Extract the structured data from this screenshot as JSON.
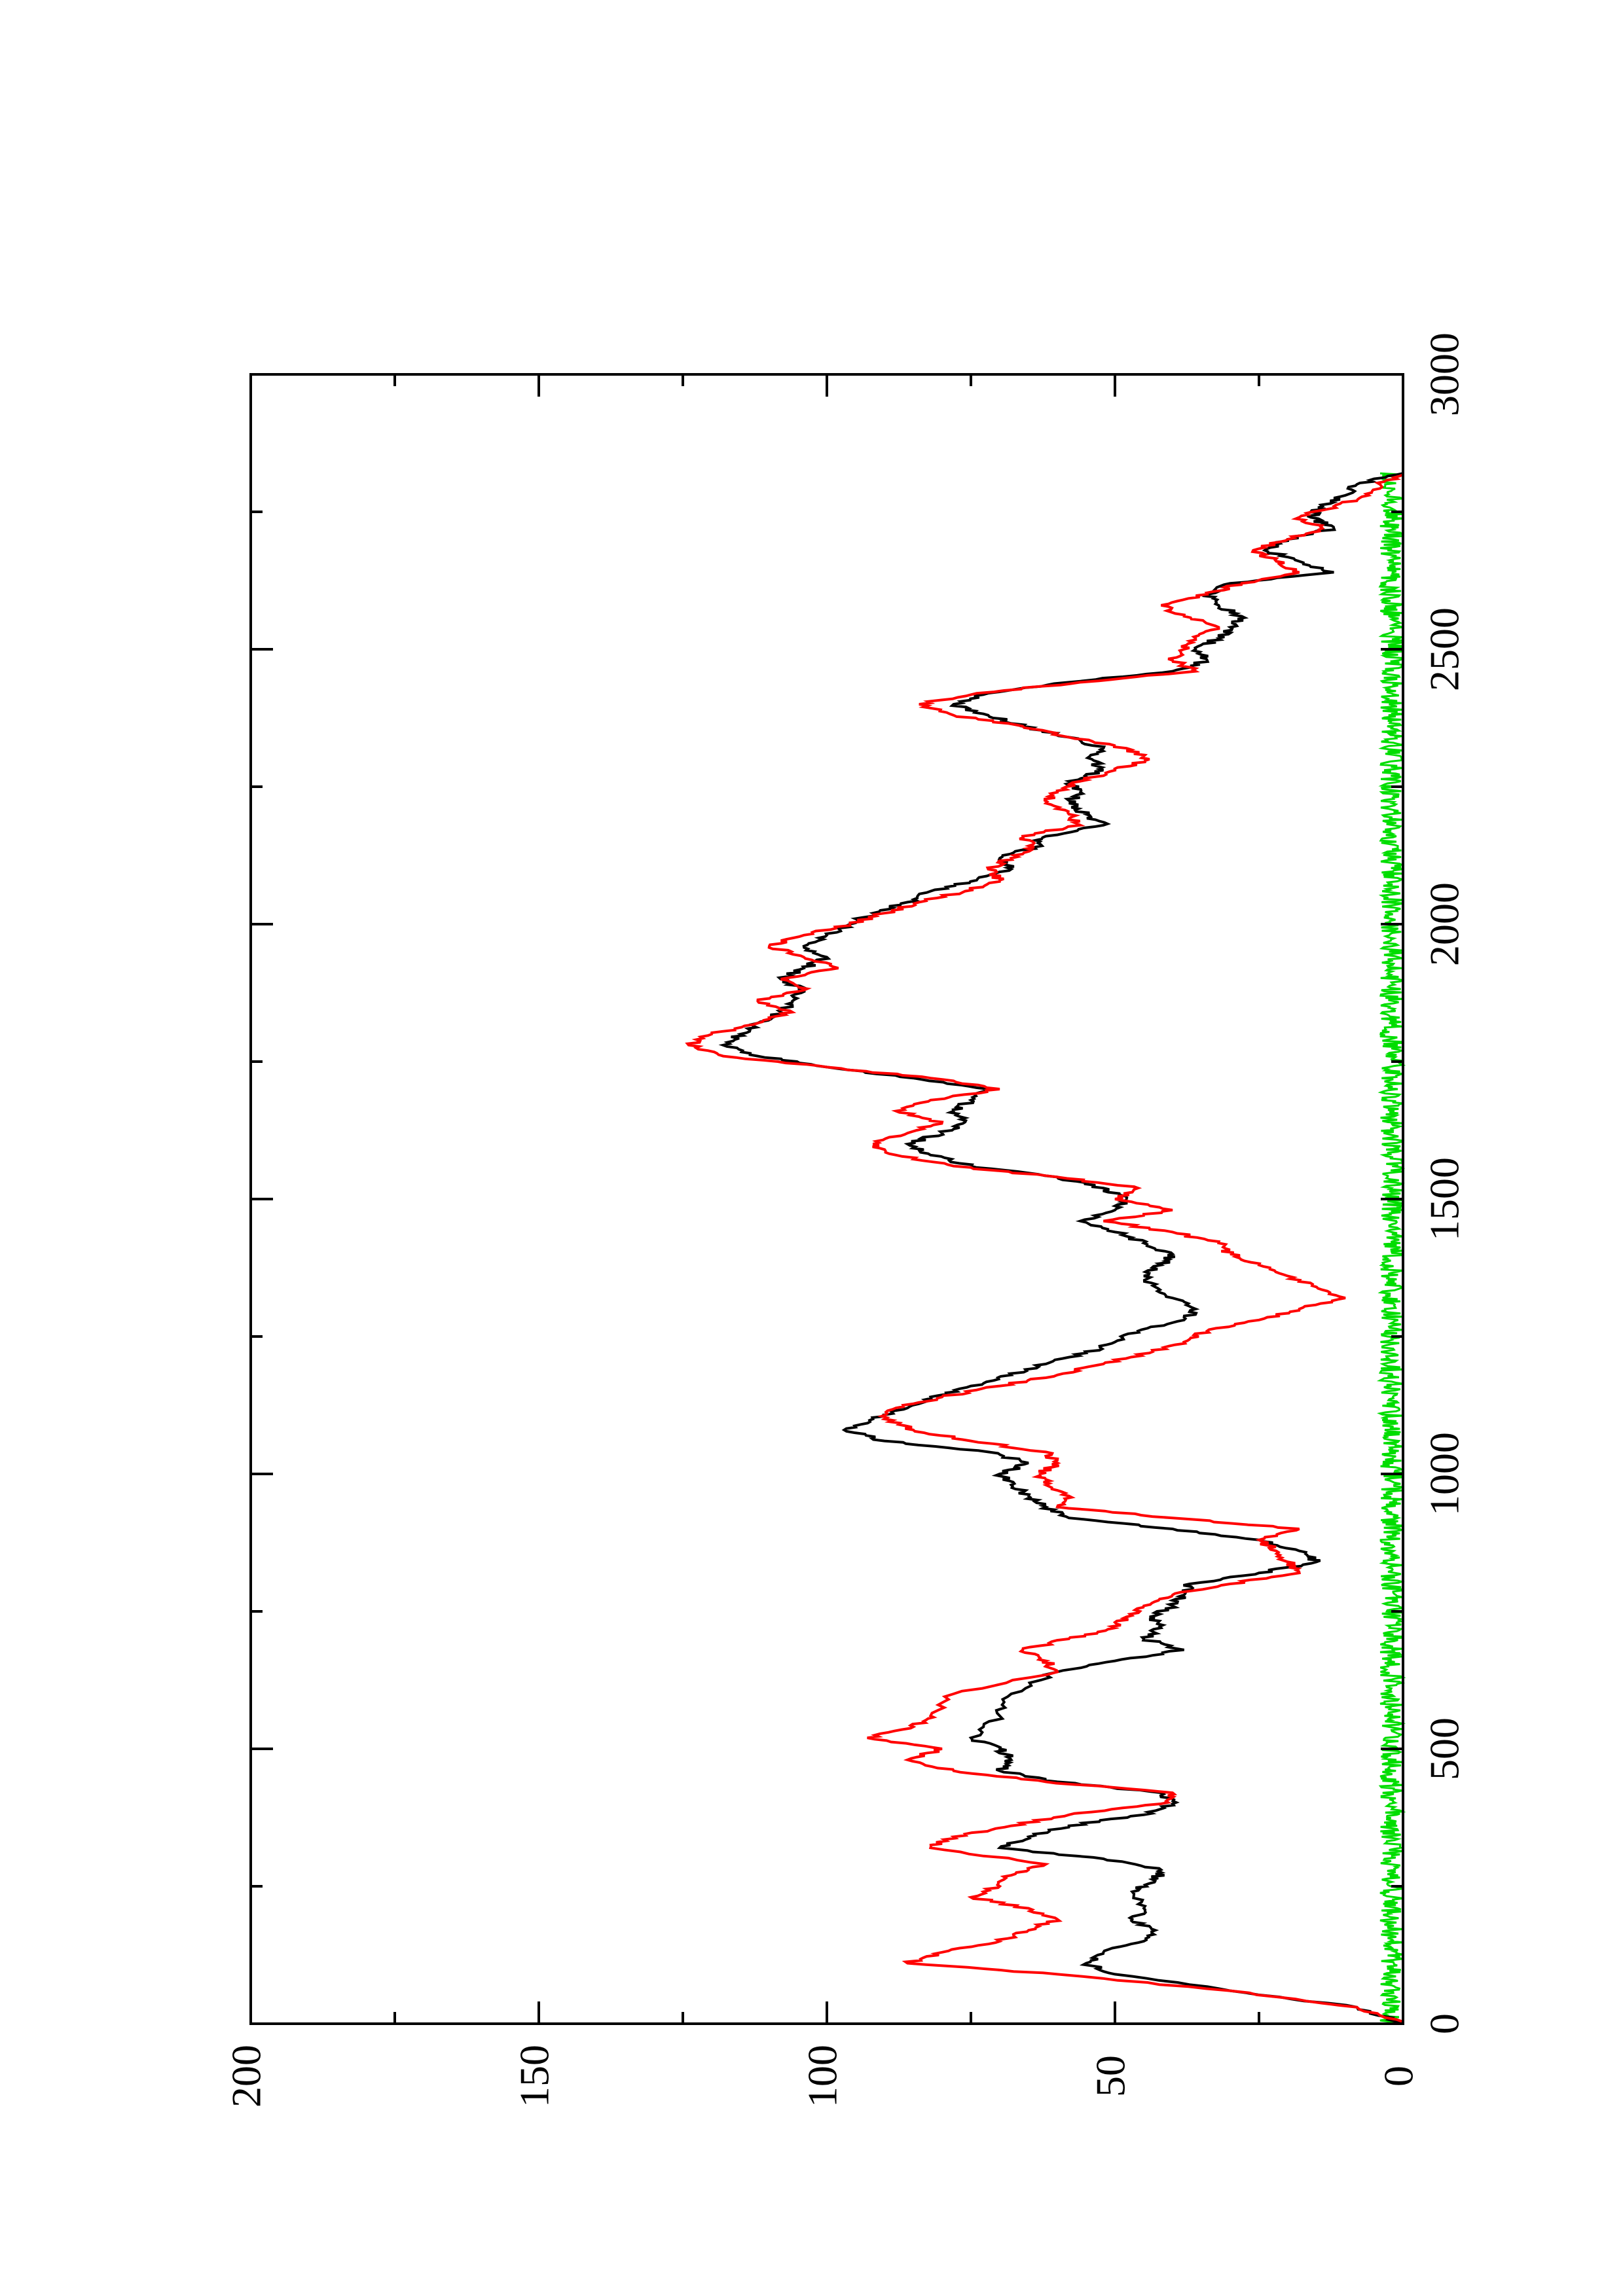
{
  "chart_data": {
    "type": "line",
    "title": "",
    "xlabel": "",
    "ylabel": "",
    "orientation": "rotated 90 degrees counter-clockwise (x axis runs bottom-to-top along the right side)",
    "xlim": [
      0,
      3000
    ],
    "ylim": [
      0,
      200
    ],
    "x_ticks": [
      0,
      500,
      1000,
      1500,
      2000,
      2500,
      3000
    ],
    "x_tick_labels": [
      "0",
      "500",
      "1000",
      "1500",
      "2000",
      "2500",
      "3000"
    ],
    "y_ticks": [
      0,
      50,
      100,
      150,
      200
    ],
    "y_tick_labels": [
      "0",
      "50",
      "100",
      "150",
      "200"
    ],
    "grid": false,
    "legend": "none",
    "series": [
      {
        "color": "#000000",
        "style": "jagged-line",
        "points": [
          [
            0,
            0
          ],
          [
            30,
            8
          ],
          [
            60,
            30
          ],
          [
            90,
            50
          ],
          [
            110,
            55
          ],
          [
            130,
            52
          ],
          [
            150,
            45
          ],
          [
            170,
            43
          ],
          [
            190,
            47
          ],
          [
            210,
            45
          ],
          [
            240,
            47
          ],
          [
            260,
            43
          ],
          [
            280,
            42
          ],
          [
            300,
            52
          ],
          [
            320,
            70
          ],
          [
            340,
            65
          ],
          [
            360,
            58
          ],
          [
            380,
            45
          ],
          [
            400,
            40
          ],
          [
            420,
            42
          ],
          [
            440,
            60
          ],
          [
            460,
            70
          ],
          [
            480,
            68
          ],
          [
            500,
            70
          ],
          [
            520,
            75
          ],
          [
            560,
            70
          ],
          [
            600,
            68
          ],
          [
            640,
            60
          ],
          [
            660,
            50
          ],
          [
            680,
            38
          ],
          [
            700,
            45
          ],
          [
            720,
            42
          ],
          [
            740,
            44
          ],
          [
            760,
            40
          ],
          [
            780,
            38
          ],
          [
            800,
            37
          ],
          [
            820,
            25
          ],
          [
            840,
            15
          ],
          [
            860,
            18
          ],
          [
            880,
            25
          ],
          [
            900,
            40
          ],
          [
            920,
            58
          ],
          [
            940,
            62
          ],
          [
            960,
            65
          ],
          [
            980,
            68
          ],
          [
            1000,
            70
          ],
          [
            1020,
            65
          ],
          [
            1040,
            72
          ],
          [
            1060,
            90
          ],
          [
            1080,
            97
          ],
          [
            1100,
            92
          ],
          [
            1120,
            86
          ],
          [
            1140,
            82
          ],
          [
            1160,
            75
          ],
          [
            1180,
            68
          ],
          [
            1200,
            62
          ],
          [
            1220,
            55
          ],
          [
            1240,
            50
          ],
          [
            1260,
            46
          ],
          [
            1280,
            38
          ],
          [
            1300,
            36
          ],
          [
            1320,
            40
          ],
          [
            1340,
            43
          ],
          [
            1360,
            45
          ],
          [
            1380,
            42
          ],
          [
            1400,
            40
          ],
          [
            1420,
            45
          ],
          [
            1440,
            50
          ],
          [
            1460,
            56
          ],
          [
            1480,
            50
          ],
          [
            1500,
            48
          ],
          [
            1520,
            52
          ],
          [
            1540,
            60
          ],
          [
            1560,
            75
          ],
          [
            1580,
            82
          ],
          [
            1600,
            86
          ],
          [
            1620,
            80
          ],
          [
            1640,
            76
          ],
          [
            1660,
            78
          ],
          [
            1680,
            75
          ],
          [
            1700,
            72
          ],
          [
            1720,
            85
          ],
          [
            1740,
            100
          ],
          [
            1760,
            112
          ],
          [
            1780,
            118
          ],
          [
            1800,
            115
          ],
          [
            1820,
            112
          ],
          [
            1840,
            108
          ],
          [
            1860,
            106
          ],
          [
            1880,
            104
          ],
          [
            1900,
            108
          ],
          [
            1920,
            104
          ],
          [
            1940,
            100
          ],
          [
            1960,
            104
          ],
          [
            1980,
            100
          ],
          [
            2000,
            96
          ],
          [
            2020,
            92
          ],
          [
            2040,
            86
          ],
          [
            2060,
            82
          ],
          [
            2080,
            74
          ],
          [
            2100,
            68
          ],
          [
            2120,
            70
          ],
          [
            2140,
            64
          ],
          [
            2160,
            62
          ],
          [
            2180,
            52
          ],
          [
            2200,
            55
          ],
          [
            2220,
            58
          ],
          [
            2240,
            56
          ],
          [
            2260,
            58
          ],
          [
            2280,
            52
          ],
          [
            2300,
            54
          ],
          [
            2320,
            52
          ],
          [
            2340,
            58
          ],
          [
            2360,
            66
          ],
          [
            2380,
            72
          ],
          [
            2400,
            78
          ],
          [
            2420,
            72
          ],
          [
            2440,
            58
          ],
          [
            2460,
            40
          ],
          [
            2480,
            34
          ],
          [
            2500,
            36
          ],
          [
            2520,
            32
          ],
          [
            2540,
            30
          ],
          [
            2560,
            28
          ],
          [
            2580,
            32
          ],
          [
            2600,
            34
          ],
          [
            2620,
            30
          ],
          [
            2640,
            12
          ],
          [
            2660,
            18
          ],
          [
            2680,
            24
          ],
          [
            2700,
            20
          ],
          [
            2720,
            12
          ],
          [
            2740,
            16
          ],
          [
            2760,
            14
          ],
          [
            2780,
            10
          ],
          [
            2800,
            8
          ],
          [
            2820,
            0
          ]
        ]
      },
      {
        "color": "#ff0000",
        "style": "jagged-line",
        "points": [
          [
            0,
            0
          ],
          [
            30,
            8
          ],
          [
            60,
            30
          ],
          [
            90,
            60
          ],
          [
            110,
            86
          ],
          [
            130,
            80
          ],
          [
            150,
            70
          ],
          [
            170,
            65
          ],
          [
            190,
            60
          ],
          [
            210,
            65
          ],
          [
            230,
            75
          ],
          [
            250,
            70
          ],
          [
            270,
            68
          ],
          [
            290,
            62
          ],
          [
            320,
            82
          ],
          [
            340,
            78
          ],
          [
            360,
            68
          ],
          [
            380,
            58
          ],
          [
            400,
            42
          ],
          [
            420,
            40
          ],
          [
            440,
            62
          ],
          [
            460,
            78
          ],
          [
            480,
            86
          ],
          [
            500,
            80
          ],
          [
            520,
            93
          ],
          [
            540,
            85
          ],
          [
            560,
            82
          ],
          [
            600,
            78
          ],
          [
            640,
            60
          ],
          [
            660,
            62
          ],
          [
            680,
            66
          ],
          [
            700,
            58
          ],
          [
            720,
            50
          ],
          [
            740,
            48
          ],
          [
            760,
            45
          ],
          [
            780,
            40
          ],
          [
            800,
            30
          ],
          [
            820,
            18
          ],
          [
            840,
            20
          ],
          [
            860,
            22
          ],
          [
            880,
            25
          ],
          [
            900,
            18
          ],
          [
            920,
            40
          ],
          [
            940,
            60
          ],
          [
            960,
            58
          ],
          [
            980,
            62
          ],
          [
            1000,
            63
          ],
          [
            1020,
            60
          ],
          [
            1040,
            62
          ],
          [
            1060,
            75
          ],
          [
            1080,
            85
          ],
          [
            1100,
            90
          ],
          [
            1120,
            88
          ],
          [
            1140,
            80
          ],
          [
            1160,
            70
          ],
          [
            1180,
            60
          ],
          [
            1200,
            52
          ],
          [
            1220,
            44
          ],
          [
            1240,
            38
          ],
          [
            1260,
            34
          ],
          [
            1280,
            25
          ],
          [
            1300,
            18
          ],
          [
            1320,
            10
          ],
          [
            1340,
            15
          ],
          [
            1360,
            20
          ],
          [
            1380,
            25
          ],
          [
            1400,
            30
          ],
          [
            1420,
            32
          ],
          [
            1440,
            40
          ],
          [
            1460,
            52
          ],
          [
            1480,
            40
          ],
          [
            1500,
            50
          ],
          [
            1520,
            46
          ],
          [
            1540,
            60
          ],
          [
            1560,
            78
          ],
          [
            1580,
            88
          ],
          [
            1600,
            92
          ],
          [
            1620,
            86
          ],
          [
            1640,
            80
          ],
          [
            1660,
            88
          ],
          [
            1680,
            82
          ],
          [
            1700,
            70
          ],
          [
            1720,
            82
          ],
          [
            1740,
            100
          ],
          [
            1760,
            118
          ],
          [
            1780,
            124
          ],
          [
            1800,
            120
          ],
          [
            1820,
            112
          ],
          [
            1840,
            106
          ],
          [
            1860,
            112
          ],
          [
            1880,
            104
          ],
          [
            1900,
            108
          ],
          [
            1920,
            98
          ],
          [
            1940,
            104
          ],
          [
            1960,
            110
          ],
          [
            1980,
            104
          ],
          [
            2000,
            96
          ],
          [
            2020,
            90
          ],
          [
            2040,
            84
          ],
          [
            2060,
            76
          ],
          [
            2080,
            70
          ],
          [
            2100,
            72
          ],
          [
            2120,
            68
          ],
          [
            2140,
            64
          ],
          [
            2160,
            66
          ],
          [
            2180,
            56
          ],
          [
            2200,
            58
          ],
          [
            2220,
            62
          ],
          [
            2240,
            60
          ],
          [
            2260,
            56
          ],
          [
            2280,
            50
          ],
          [
            2300,
            44
          ],
          [
            2320,
            48
          ],
          [
            2340,
            58
          ],
          [
            2360,
            66
          ],
          [
            2380,
            78
          ],
          [
            2400,
            84
          ],
          [
            2420,
            74
          ],
          [
            2440,
            56
          ],
          [
            2460,
            36
          ],
          [
            2480,
            40
          ],
          [
            2500,
            38
          ],
          [
            2520,
            36
          ],
          [
            2540,
            32
          ],
          [
            2560,
            38
          ],
          [
            2580,
            42
          ],
          [
            2600,
            34
          ],
          [
            2620,
            28
          ],
          [
            2640,
            18
          ],
          [
            2660,
            22
          ],
          [
            2680,
            26
          ],
          [
            2700,
            20
          ],
          [
            2720,
            14
          ],
          [
            2740,
            18
          ],
          [
            2760,
            12
          ],
          [
            2780,
            6
          ],
          [
            2800,
            4
          ],
          [
            2820,
            0
          ]
        ]
      },
      {
        "color": "#00dd00",
        "style": "noise-band",
        "x_range": [
          0,
          2820
        ],
        "y_min": 0,
        "y_max": 4
      }
    ]
  }
}
